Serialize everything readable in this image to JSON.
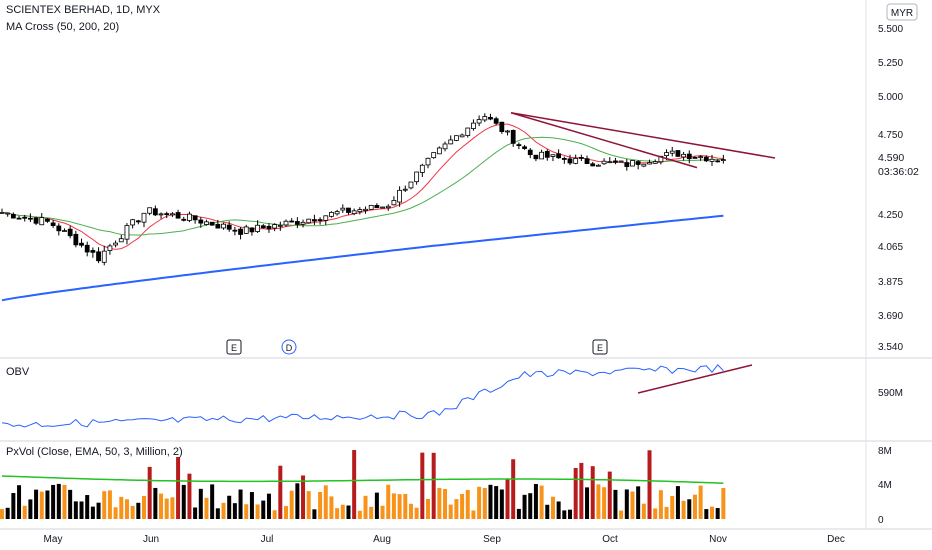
{
  "header": {
    "title": "SCIENTEX BERHAD, 1D, MYX",
    "indicator": "MA Cross (50, 200, 20)"
  },
  "currency": "MYR",
  "price_badge": {
    "value": "4.590",
    "countdown": "03:36:02"
  },
  "obv": {
    "label": "OBV",
    "value_label": "590M"
  },
  "pxvol": {
    "label": "PxVol (Close, EMA, 50, 3, Million, 2)"
  },
  "events": [
    "E",
    "D",
    "E"
  ],
  "colors": {
    "up": "#ffffff",
    "down": "#000000",
    "ma_fast": "#f23645",
    "ma_mid": "#4caf50",
    "ma_slow": "#2962ff",
    "obv": "#2962ff",
    "trendline": "#8e1537",
    "vol_up": "#f7931a",
    "vol_down": "#000000",
    "vol_high": "#b71c1c",
    "vol_ema": "#22c322"
  },
  "chart_data": [
    {
      "type": "candlestick",
      "title": "SCIENTEX BERHAD, 1D, MYX",
      "y_ticks": [
        "5.500",
        "5.250",
        "5.000",
        "4.750",
        "4.250",
        "4.065",
        "3.875",
        "3.690",
        "3.540"
      ],
      "x_ticks": [
        "May",
        "Jun",
        "Jul",
        "Aug",
        "Sep",
        "Oct",
        "Nov",
        "Dec"
      ],
      "last_price": 4.59,
      "approx_close_path": [
        [
          "May-01",
          4.26
        ],
        [
          "May-15",
          4.2
        ],
        [
          "May-27",
          4.0
        ],
        [
          "Jun-05",
          4.27
        ],
        [
          "Jun-20",
          4.22
        ],
        [
          "Jul-05",
          4.15
        ],
        [
          "Jul-15",
          4.2
        ],
        [
          "Aug-01",
          4.26
        ],
        [
          "Aug-15",
          4.3
        ],
        [
          "Aug-28",
          4.62
        ],
        [
          "Sep-02",
          4.88
        ],
        [
          "Sep-10",
          4.62
        ],
        [
          "Sep-25",
          4.58
        ],
        [
          "Oct-10",
          4.56
        ],
        [
          "Oct-20",
          4.63
        ],
        [
          "Nov-01",
          4.59
        ]
      ],
      "series": [
        {
          "name": "MA 20",
          "approx_end": 4.59
        },
        {
          "name": "MA 50",
          "approx_end": 4.54
        },
        {
          "name": "MA 200",
          "approx_end": 4.24
        }
      ]
    },
    {
      "type": "line",
      "title": "OBV",
      "y_ticks": [
        "590M"
      ]
    },
    {
      "type": "bar",
      "title": "PxVol (Close, EMA, 50, 3, Million, 2)",
      "y_ticks": [
        "8M",
        "4M",
        "0"
      ]
    }
  ]
}
